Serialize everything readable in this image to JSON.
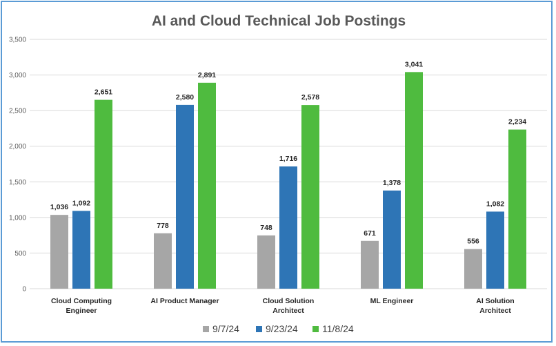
{
  "chart_data": {
    "type": "bar",
    "title": "AI and Cloud Technical Job Postings",
    "categories": [
      [
        "Cloud Computing",
        "Engineer"
      ],
      [
        "AI Product Manager"
      ],
      [
        "Cloud Solution",
        "Architect"
      ],
      [
        "ML Engineer"
      ],
      [
        "AI Solution",
        "Architect"
      ]
    ],
    "series": [
      {
        "name": "9/7/24",
        "color": "#a6a6a6",
        "values": [
          1036,
          778,
          748,
          671,
          556
        ]
      },
      {
        "name": "9/23/24",
        "color": "#2e75b6",
        "values": [
          1092,
          2580,
          1716,
          1378,
          1082
        ]
      },
      {
        "name": "11/8/24",
        "color": "#4fbb3f",
        "values": [
          2651,
          2891,
          2578,
          3041,
          2234
        ]
      }
    ],
    "ylim": [
      0,
      3500
    ],
    "yticks": [
      0,
      500,
      1000,
      1500,
      2000,
      2500,
      3000,
      3500
    ],
    "ytick_labels": [
      "0",
      "500",
      "1,000",
      "1,500",
      "2,000",
      "2,500",
      "3,000",
      "3,500"
    ],
    "value_labels": [
      [
        "1,036",
        "778",
        "748",
        "671",
        "556"
      ],
      [
        "1,092",
        "2,580",
        "1,716",
        "1,378",
        "1,082"
      ],
      [
        "2,651",
        "2,891",
        "2,578",
        "3,041",
        "2,234"
      ]
    ],
    "xlabel": "",
    "ylabel": "",
    "grid": true,
    "legend_position": "bottom"
  }
}
